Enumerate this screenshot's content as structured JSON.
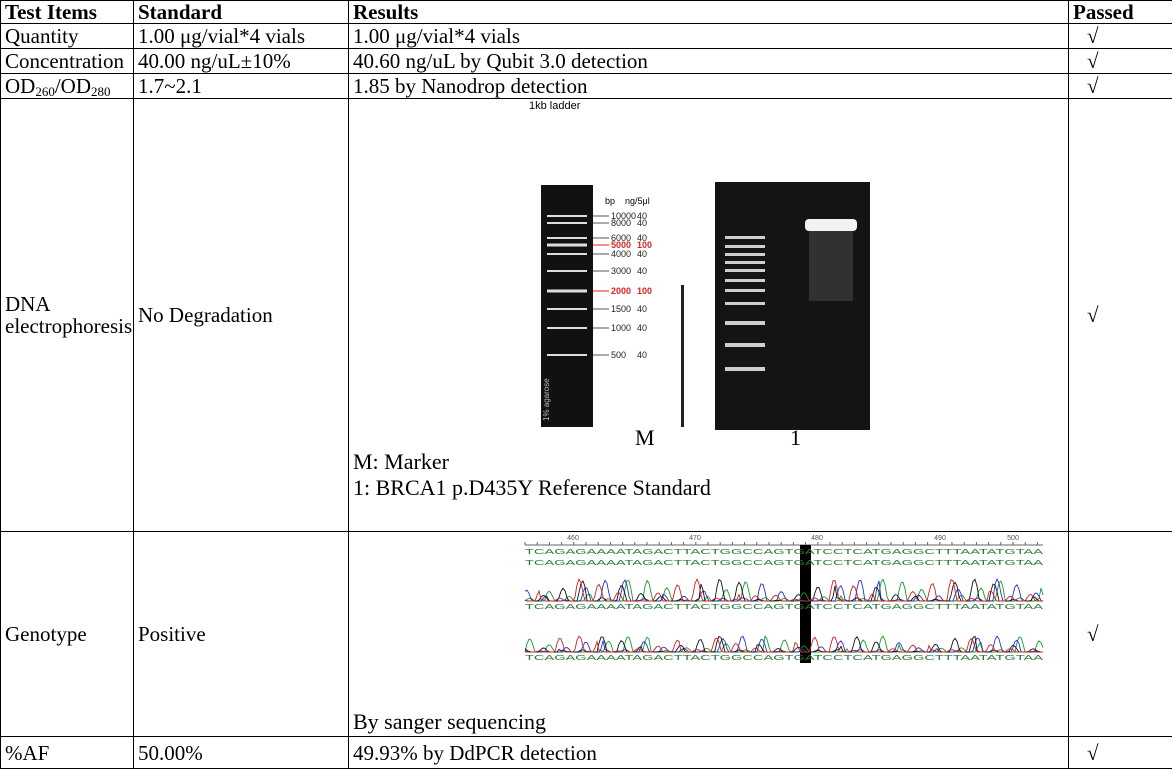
{
  "table": {
    "header": [
      "Test Items",
      "Standard",
      "Results",
      "Passed"
    ],
    "rows": [
      [
        "Quantity",
        "1.00 μg/vial*4 vials",
        "1.00 μg/vial*4 vials",
        "√"
      ],
      [
        "Concentration",
        "40.00 ng/uL±10%",
        "40.60 ng/uL by Qubit 3.0 detection",
        "√"
      ],
      [
        [
          "OD",
          "260",
          "/OD",
          "280"
        ],
        "1.7~2.1",
        "1.85 by Nanodrop detection",
        "√"
      ],
      [
        "DNA electrophoresis",
        "No Degradation",
        {
          "image_title": "1kb ladder",
          "ladder_headers": [
            "bp",
            "ng/5μl"
          ],
          "ladder": [
            [
              "10000",
              "40"
            ],
            [
              "8000",
              "40"
            ],
            [
              "6000",
              "40"
            ],
            [
              "5000",
              "100"
            ],
            [
              "4000",
              "40"
            ],
            [
              "3000",
              "40"
            ],
            [
              "2000",
              "100"
            ],
            [
              "1500",
              "40"
            ],
            [
              "1000",
              "40"
            ],
            [
              "500",
              "40"
            ]
          ],
          "gel_note": "1% agarose",
          "lanes": [
            "M",
            "1"
          ],
          "notes": [
            "M: Marker",
            "1: BRCA1 p.D435Y Reference Standard"
          ]
        },
        "√"
      ],
      [
        "Genotype",
        "Positive",
        {
          "ruler": [
            "460",
            "470",
            "480",
            "490",
            "500"
          ],
          "sequence": "TCAGAGAAAATAGACTTACTGGCCAGTGATCCTCATGAGGCTTTAATATGTAA",
          "note": "By sanger sequencing"
        },
        "√"
      ],
      [
        "%AF",
        "50.00%",
        "49.93% by DdPCR detection",
        "√"
      ]
    ]
  }
}
